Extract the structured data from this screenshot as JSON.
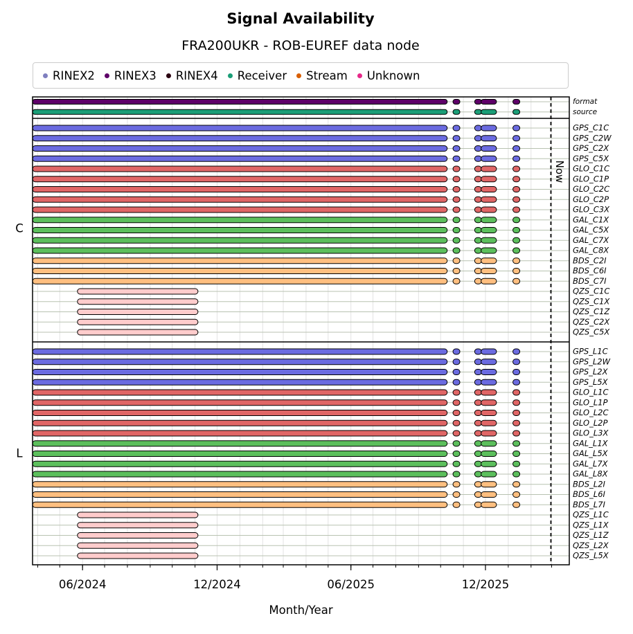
{
  "title": "Signal Availability",
  "subtitle": "FRA200UKR - ROB-EUREF data node",
  "legend": [
    {
      "label": "RINEX2",
      "color": "#7f7fbf"
    },
    {
      "label": "RINEX3",
      "color": "#5e0068"
    },
    {
      "label": "RINEX4",
      "color": "#2a0010"
    },
    {
      "label": "Receiver",
      "color": "#1b9e77"
    },
    {
      "label": "Stream",
      "color": "#d95f02"
    },
    {
      "label": "Unknown",
      "color": "#e7298a"
    }
  ],
  "chart_data": {
    "type": "timeline",
    "xlabel": "Month/Year",
    "x_ticks": [
      "06/2024",
      "12/2024",
      "06/2025",
      "12/2025"
    ],
    "xlim": [
      "2024-03-25",
      "2026-03-25"
    ],
    "now_label": "Now",
    "now_date": "2026-02-28",
    "groups": [
      {
        "name": "",
        "label": "",
        "rows": [
          {
            "name": "format",
            "color": "#5e0068",
            "intervals": "main"
          },
          {
            "name": "source",
            "color": "#1b9e77",
            "intervals": "main"
          }
        ]
      },
      {
        "name": "C",
        "label": "C",
        "rows": [
          {
            "name": "GPS_C1C",
            "color": "#6b6be0",
            "intervals": "main"
          },
          {
            "name": "GPS_C2W",
            "color": "#6b6be0",
            "intervals": "main"
          },
          {
            "name": "GPS_C2X",
            "color": "#6b6be0",
            "intervals": "main"
          },
          {
            "name": "GPS_C5X",
            "color": "#6b6be0",
            "intervals": "main"
          },
          {
            "name": "GLO_C1C",
            "color": "#e06666",
            "intervals": "main"
          },
          {
            "name": "GLO_C1P",
            "color": "#e06666",
            "intervals": "main"
          },
          {
            "name": "GLO_C2C",
            "color": "#e06666",
            "intervals": "main"
          },
          {
            "name": "GLO_C2P",
            "color": "#e06666",
            "intervals": "main"
          },
          {
            "name": "GLO_C3X",
            "color": "#e06666",
            "intervals": "main"
          },
          {
            "name": "GAL_C1X",
            "color": "#5cbf5c",
            "intervals": "main"
          },
          {
            "name": "GAL_C5X",
            "color": "#5cbf5c",
            "intervals": "main"
          },
          {
            "name": "GAL_C7X",
            "color": "#5cbf5c",
            "intervals": "main"
          },
          {
            "name": "GAL_C8X",
            "color": "#5cbf5c",
            "intervals": "main"
          },
          {
            "name": "BDS_C2I",
            "color": "#ffbf80",
            "intervals": "main"
          },
          {
            "name": "BDS_C6I",
            "color": "#ffbf80",
            "intervals": "main"
          },
          {
            "name": "BDS_C7I",
            "color": "#ffbf80",
            "intervals": "main"
          },
          {
            "name": "QZS_C1C",
            "color": "#ffcccc",
            "intervals": "qzs"
          },
          {
            "name": "QZS_C1X",
            "color": "#ffcccc",
            "intervals": "qzs"
          },
          {
            "name": "QZS_C1Z",
            "color": "#ffcccc",
            "intervals": "qzs"
          },
          {
            "name": "QZS_C2X",
            "color": "#ffcccc",
            "intervals": "qzs"
          },
          {
            "name": "QZS_C5X",
            "color": "#ffcccc",
            "intervals": "qzs"
          }
        ]
      },
      {
        "name": "L",
        "label": "L",
        "rows": [
          {
            "name": "GPS_L1C",
            "color": "#6b6be0",
            "intervals": "main"
          },
          {
            "name": "GPS_L2W",
            "color": "#6b6be0",
            "intervals": "main"
          },
          {
            "name": "GPS_L2X",
            "color": "#6b6be0",
            "intervals": "main"
          },
          {
            "name": "GPS_L5X",
            "color": "#6b6be0",
            "intervals": "main"
          },
          {
            "name": "GLO_L1C",
            "color": "#e06666",
            "intervals": "main"
          },
          {
            "name": "GLO_L1P",
            "color": "#e06666",
            "intervals": "main"
          },
          {
            "name": "GLO_L2C",
            "color": "#e06666",
            "intervals": "main"
          },
          {
            "name": "GLO_L2P",
            "color": "#e06666",
            "intervals": "main"
          },
          {
            "name": "GLO_L3X",
            "color": "#e06666",
            "intervals": "main"
          },
          {
            "name": "GAL_L1X",
            "color": "#5cbf5c",
            "intervals": "main"
          },
          {
            "name": "GAL_L5X",
            "color": "#5cbf5c",
            "intervals": "main"
          },
          {
            "name": "GAL_L7X",
            "color": "#5cbf5c",
            "intervals": "main"
          },
          {
            "name": "GAL_L8X",
            "color": "#5cbf5c",
            "intervals": "main"
          },
          {
            "name": "BDS_L2I",
            "color": "#ffbf80",
            "intervals": "main"
          },
          {
            "name": "BDS_L6I",
            "color": "#ffbf80",
            "intervals": "main"
          },
          {
            "name": "BDS_L7I",
            "color": "#ffbf80",
            "intervals": "main"
          },
          {
            "name": "QZS_L1C",
            "color": "#ffcccc",
            "intervals": "qzs"
          },
          {
            "name": "QZS_L1X",
            "color": "#ffcccc",
            "intervals": "qzs"
          },
          {
            "name": "QZS_L1Z",
            "color": "#ffcccc",
            "intervals": "qzs"
          },
          {
            "name": "QZS_L2X",
            "color": "#ffcccc",
            "intervals": "qzs"
          },
          {
            "name": "QZS_L5X",
            "color": "#ffcccc",
            "intervals": "qzs"
          }
        ]
      }
    ],
    "interval_sets": {
      "main": [
        [
          "2024-03-25",
          "2025-10-10"
        ],
        [
          "2025-10-20",
          "2025-10-25"
        ],
        [
          "2025-11-20",
          "2025-11-22"
        ],
        [
          "2025-11-25",
          "2025-12-16"
        ],
        [
          "2026-01-10",
          "2026-01-14"
        ]
      ],
      "qzs": [
        [
          "2024-05-25",
          "2024-11-05"
        ]
      ]
    }
  }
}
